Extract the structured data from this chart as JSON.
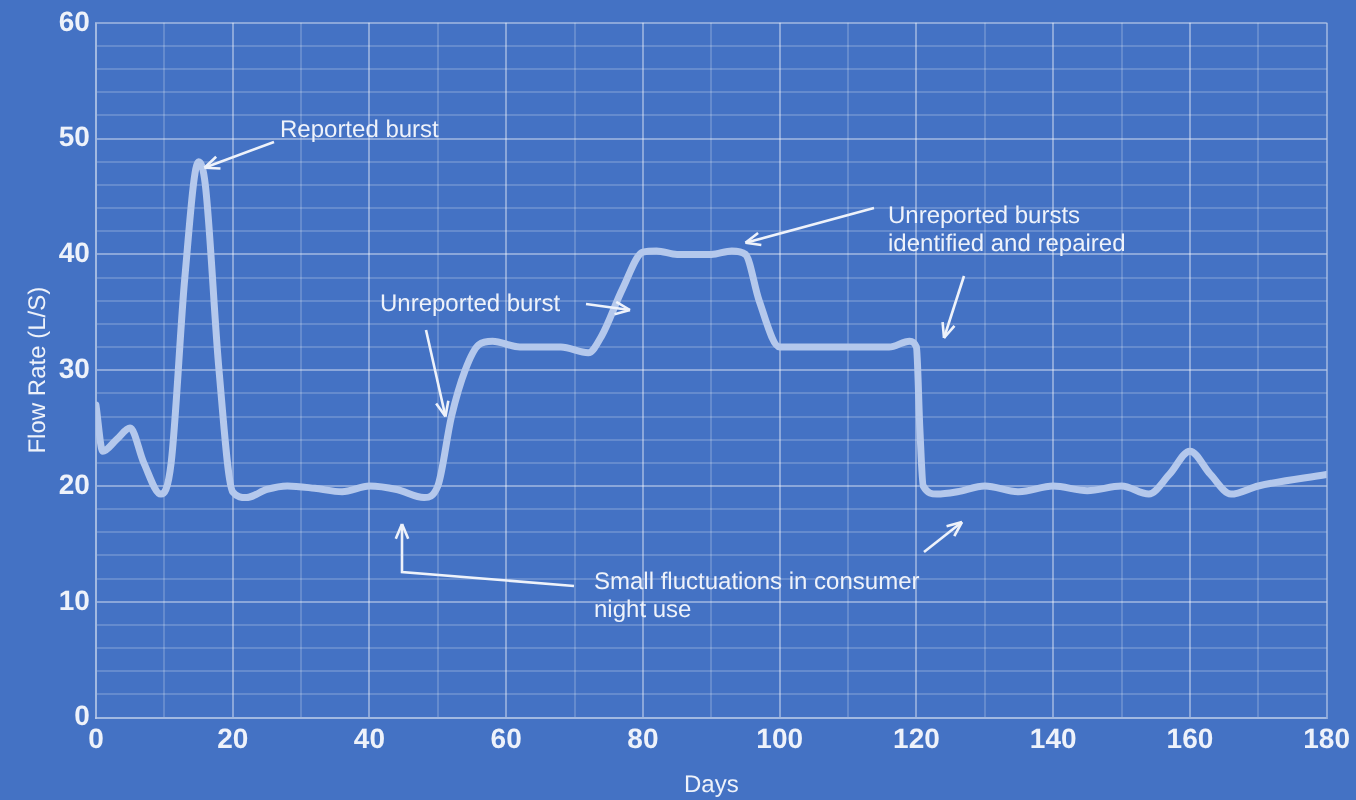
{
  "chart_data": {
    "type": "line",
    "xlabel": "Days",
    "ylabel": "Flow Rate (L/S)",
    "xlim": [
      0,
      180
    ],
    "xticks": [
      0,
      {
        "value": 10,
        "label": null
      },
      20,
      {
        "value": 30,
        "label": null
      },
      40,
      {
        "value": 50,
        "label": null
      },
      60,
      {
        "value": 70,
        "label": null
      },
      80,
      {
        "value": 90,
        "label": null
      },
      100,
      {
        "value": 110,
        "label": null
      },
      120,
      {
        "value": 130,
        "label": null
      },
      140,
      {
        "value": 150,
        "label": null
      },
      160,
      {
        "value": 170,
        "label": null
      },
      180
    ],
    "ylim": [
      0,
      60
    ],
    "yticks": [
      0,
      {
        "value": 2,
        "label": null
      },
      {
        "value": 4,
        "label": null
      },
      {
        "value": 6,
        "label": null
      },
      {
        "value": 8,
        "label": null
      },
      10,
      {
        "value": 12,
        "label": null
      },
      {
        "value": 14,
        "label": null
      },
      {
        "value": 16,
        "label": null
      },
      {
        "value": 18,
        "label": null
      },
      20,
      {
        "value": 22,
        "label": null
      },
      {
        "value": 24,
        "label": null
      },
      {
        "value": 26,
        "label": null
      },
      {
        "value": 28,
        "label": null
      },
      30,
      {
        "value": 32,
        "label": null
      },
      {
        "value": 34,
        "label": null
      },
      {
        "value": 36,
        "label": null
      },
      {
        "value": 38,
        "label": null
      },
      40,
      {
        "value": 42,
        "label": null
      },
      {
        "value": 44,
        "label": null
      },
      {
        "value": 46,
        "label": null
      },
      {
        "value": 48,
        "label": null
      },
      50,
      {
        "value": 52,
        "label": null
      },
      {
        "value": 54,
        "label": null
      },
      {
        "value": 56,
        "label": null
      },
      {
        "value": 58,
        "label": null
      },
      60
    ],
    "grid": true,
    "legend": false,
    "marker": "none",
    "line_style": "solid",
    "series": [
      {
        "color": "#b4c8ec",
        "x": [
          0,
          1,
          3,
          5,
          7,
          9.5,
          11,
          13,
          15,
          16,
          18,
          20,
          22,
          25,
          28,
          32,
          36,
          40,
          44,
          48,
          50,
          52,
          54,
          56,
          58,
          62,
          68,
          72,
          74,
          77,
          80,
          82,
          85,
          90,
          93,
          95,
          97,
          100,
          104,
          110,
          116,
          119,
          120,
          120.5,
          121,
          123,
          126,
          130,
          135,
          140,
          145,
          150,
          154,
          157,
          160,
          163,
          166,
          170,
          180
        ],
        "values": [
          27,
          23,
          24,
          25,
          22,
          19.3,
          22,
          38,
          48,
          46,
          30,
          19.5,
          19,
          19.7,
          20,
          19.8,
          19.5,
          20,
          19.7,
          19,
          20,
          26,
          30,
          32.2,
          32.5,
          32,
          32,
          31.5,
          33,
          37,
          40.2,
          40.3,
          40,
          40,
          40.3,
          40,
          36,
          32,
          32,
          32,
          32,
          32.5,
          32,
          25,
          20,
          19.3,
          19.5,
          20,
          19.5,
          20,
          19.6,
          20,
          19.3,
          21,
          23,
          21,
          19.3,
          20,
          21
        ]
      }
    ],
    "annotations": [
      {
        "text": "Reported burst",
        "x": 15,
        "y": 48
      },
      {
        "text": "Unreported burst",
        "x": 52,
        "y": 26
      },
      {
        "text": "Unreported bursts identified and repaired",
        "x": 95,
        "y": 41
      },
      "Small fluctuations in consumer night use"
    ]
  }
}
